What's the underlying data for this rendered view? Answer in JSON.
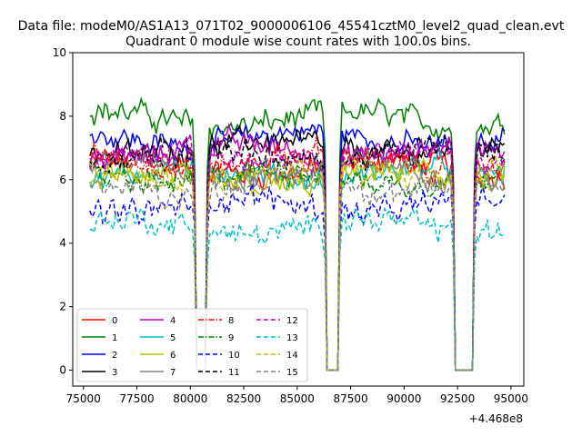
{
  "figure": {
    "suptitle": "Data file: modeM0/AS1A13_071T02_9000006106_45541cztM0_level2_quad_clean.evt",
    "title": "Quadrant 0 module wise count rates with 100.0s bins.",
    "offset_label": "+4.468e8"
  },
  "chart_data": {
    "type": "line",
    "xlim": [
      74500,
      95600
    ],
    "ylim": [
      -0.5,
      10
    ],
    "x_ticks": [
      75000,
      77500,
      80000,
      82500,
      85000,
      87500,
      90000,
      92500,
      95000
    ],
    "x_tick_labels": [
      "75000",
      "77500",
      "80000",
      "82500",
      "85000",
      "87500",
      "90000",
      "92500",
      "95000"
    ],
    "y_ticks": [
      0,
      2,
      4,
      6,
      8,
      10
    ],
    "y_tick_labels": [
      "0",
      "2",
      "4",
      "6",
      "8",
      "10"
    ],
    "x_offset": 446800000,
    "bin_seconds": 100.0,
    "x_start": 75300,
    "x_end": 94700,
    "gaps": [
      [
        80300,
        80700
      ],
      [
        86400,
        86900
      ],
      [
        92400,
        93200
      ]
    ],
    "grid": false,
    "legend_position": "lower left",
    "legend_columns": 4,
    "series": [
      {
        "name": "0",
        "color": "#ff0000",
        "dash": "solid",
        "level": 6.4
      },
      {
        "name": "1",
        "color": "#008000",
        "dash": "solid",
        "level": 7.9
      },
      {
        "name": "2",
        "color": "#0000ff",
        "dash": "solid",
        "level": 7.3
      },
      {
        "name": "3",
        "color": "#000000",
        "dash": "solid",
        "level": 7.0
      },
      {
        "name": "4",
        "color": "#bf00bf",
        "dash": "solid",
        "level": 6.9
      },
      {
        "name": "5",
        "color": "#00bfbf",
        "dash": "solid",
        "level": 6.2
      },
      {
        "name": "6",
        "color": "#bfbf00",
        "dash": "solid",
        "level": 6.0
      },
      {
        "name": "7",
        "color": "#808080",
        "dash": "solid",
        "level": 6.3
      },
      {
        "name": "8",
        "color": "#ff0000",
        "dash": "dashdot",
        "level": 6.6
      },
      {
        "name": "9",
        "color": "#008000",
        "dash": "dashdot",
        "level": 6.1
      },
      {
        "name": "10",
        "color": "#0000ff",
        "dash": "dashed",
        "level": 5.2
      },
      {
        "name": "11",
        "color": "#000000",
        "dash": "dashed",
        "level": 6.8
      },
      {
        "name": "12",
        "color": "#bf00bf",
        "dash": "dashed",
        "level": 6.7
      },
      {
        "name": "13",
        "color": "#00bfbf",
        "dash": "dashed",
        "level": 4.5
      },
      {
        "name": "14",
        "color": "#bfbf00",
        "dash": "dashed",
        "level": 6.2
      },
      {
        "name": "15",
        "color": "#808080",
        "dash": "dashed",
        "level": 5.8
      }
    ]
  }
}
